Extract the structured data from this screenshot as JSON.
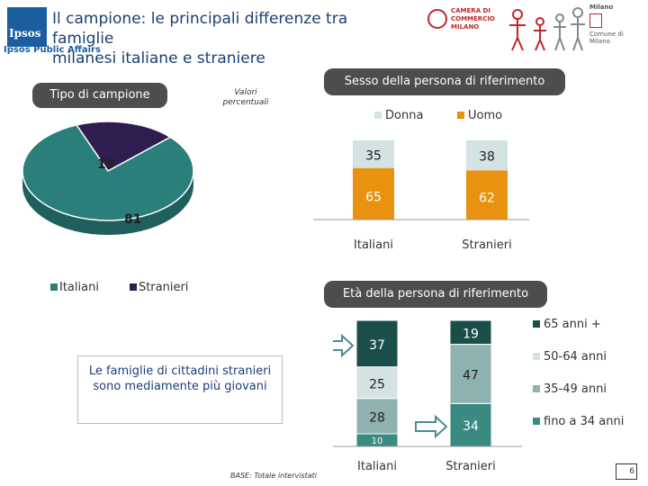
{
  "header": {
    "logo_text": "Ipsos",
    "logo_subtitle": "Ipsos Public Affairs",
    "title_line1": "Il campione: le principali differenze tra famiglie",
    "title_line2": "milanesi italiane e straniere",
    "partner_text": "CAMERA DI COMMERCIO MILANO",
    "milano_text": "Milano",
    "comune_text": "Comune di Milano"
  },
  "tipo": {
    "label": "Tipo di campione",
    "note": "Valori percentuali",
    "legend": [
      {
        "name": "Italiani",
        "color": "#2a7f7b"
      },
      {
        "name": "Stranieri",
        "color": "#2e1d4f"
      }
    ]
  },
  "callout": {
    "text": "Le famiglie di cittadini stranieri sono mediamente più giovani"
  },
  "base_note": "BASE: Totale intervistati",
  "page_number": "6",
  "colors": {
    "italiani": "#2a7f7b",
    "stranieri": "#2e1d4f",
    "donna": "#d3e3e2",
    "uomo": "#e8920f",
    "age65": "#1a4e4a",
    "age50": "#d3e3e2",
    "age35": "#8fb2b0",
    "age34": "#3a8a82",
    "arrow": "#4a8c92"
  },
  "chart_data": [
    {
      "type": "pie",
      "title": "Tipo di campione",
      "categories": [
        "Italiani",
        "Stranieri"
      ],
      "values": [
        81,
        19
      ]
    },
    {
      "type": "bar",
      "stacked": true,
      "title": "Sesso della persona di riferimento",
      "categories": [
        "Italiani",
        "Stranieri"
      ],
      "series": [
        {
          "name": "Uomo",
          "values": [
            65,
            62
          ]
        },
        {
          "name": "Donna",
          "values": [
            35,
            38
          ]
        }
      ],
      "legend": [
        "Donna",
        "Uomo"
      ]
    },
    {
      "type": "bar",
      "stacked": true,
      "title": "Età della persona di riferimento",
      "categories": [
        "Italiani",
        "Stranieri"
      ],
      "series": [
        {
          "name": "fino a 34 anni",
          "values": [
            10,
            34
          ]
        },
        {
          "name": "35-49 anni",
          "values": [
            28,
            47
          ]
        },
        {
          "name": "50-64 anni",
          "values": [
            25,
            0
          ]
        },
        {
          "name": "65 anni +",
          "values": [
            37,
            19
          ]
        }
      ],
      "legend": [
        "65 anni +",
        "50-64 anni",
        "35-49 anni",
        "fino a 34 anni"
      ]
    }
  ]
}
